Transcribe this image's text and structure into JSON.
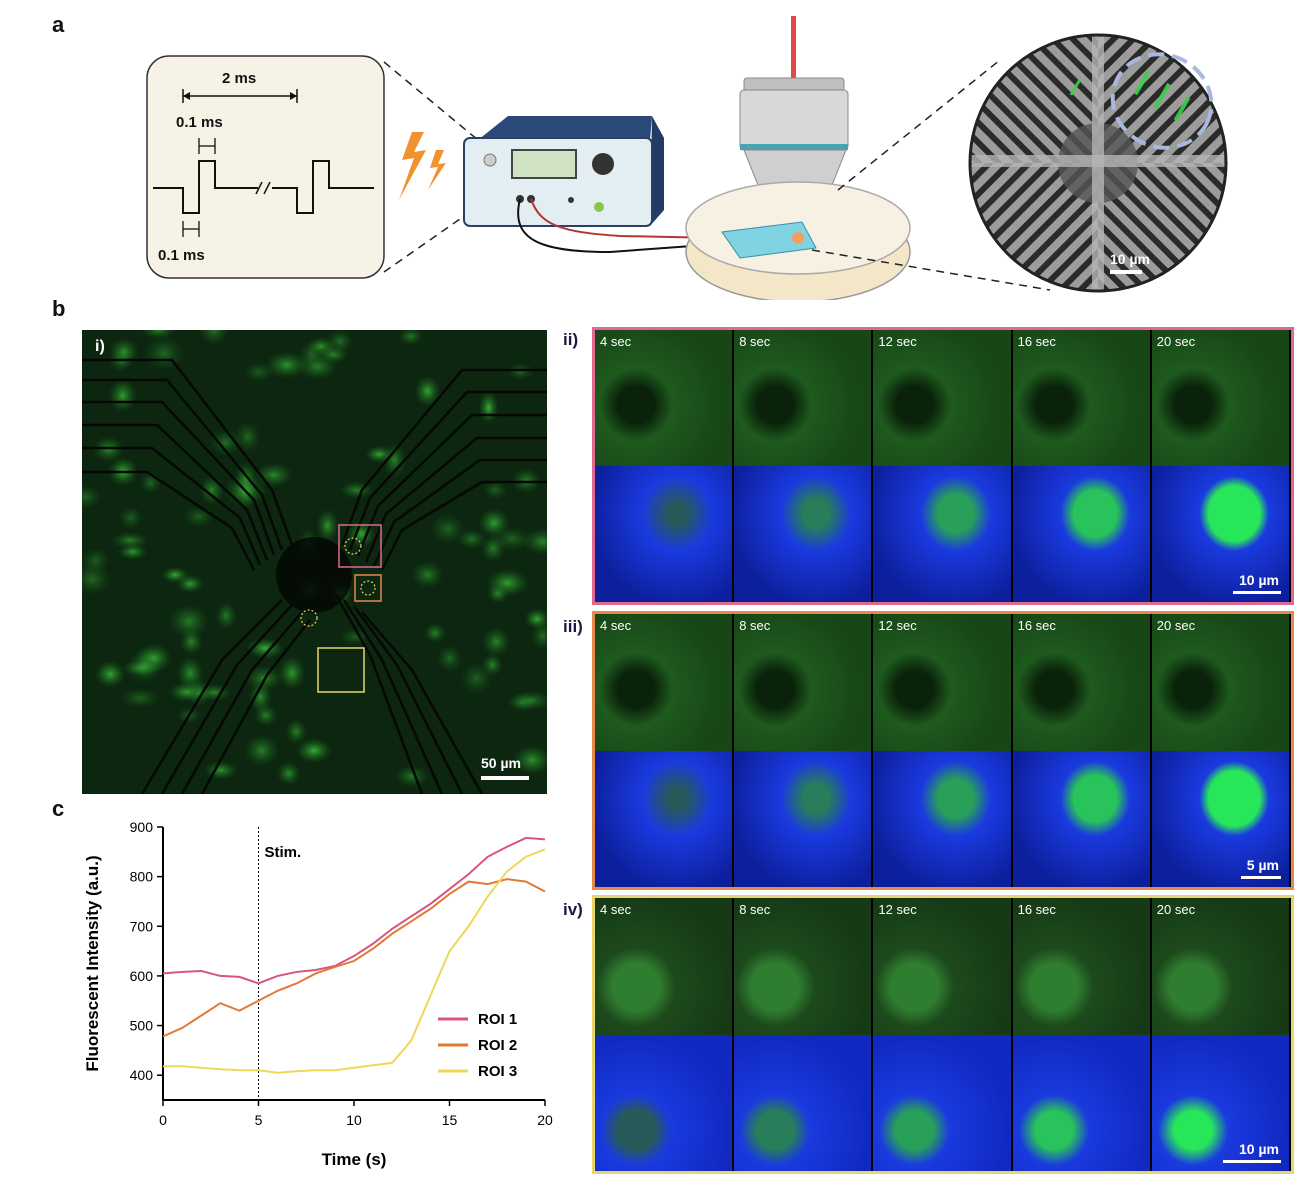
{
  "panel_labels": {
    "a": "a",
    "b": "b",
    "c": "c"
  },
  "panel_a": {
    "pulse_period": "2 ms",
    "pulse_width_top": "0.1 ms",
    "pulse_width_bottom": "0.1 ms",
    "inset_scale": "10 µm"
  },
  "panel_b": {
    "sub_labels": {
      "i": "i)",
      "ii": "ii)",
      "iii": "iii)",
      "iv": "iv)"
    },
    "overview_scale": "50 µm",
    "time_labels": [
      "4 sec",
      "8 sec",
      "12 sec",
      "16 sec",
      "20 sec"
    ],
    "scales": {
      "ii": "10 µm",
      "iii": "5 µm",
      "iv": "10 µm"
    },
    "frame_colors": {
      "ii": "#e06a8f",
      "iii": "#e58a4a",
      "iv": "#e8d66a"
    }
  },
  "chart_data": {
    "type": "line",
    "xlabel": "Time (s)",
    "ylabel": "Fluorescent Intensity (a.u.)",
    "xlim": [
      0,
      20
    ],
    "ylim": [
      350,
      900
    ],
    "xticks": [
      0,
      5,
      10,
      15,
      20
    ],
    "yticks": [
      400,
      500,
      600,
      700,
      800,
      900
    ],
    "annotation": {
      "x": 5,
      "text": "Stim."
    },
    "legend_position": "bottom-right",
    "series": [
      {
        "name": "ROI 1",
        "color": "#d9537f",
        "x": [
          0,
          1,
          2,
          3,
          4,
          5,
          6,
          7,
          8,
          9,
          10,
          11,
          12,
          13,
          14,
          15,
          16,
          17,
          18,
          19,
          20
        ],
        "y": [
          605,
          608,
          610,
          600,
          598,
          585,
          600,
          608,
          612,
          620,
          640,
          665,
          695,
          720,
          745,
          775,
          805,
          840,
          860,
          878,
          875
        ]
      },
      {
        "name": "ROI 2",
        "color": "#e07a35",
        "x": [
          0,
          1,
          2,
          3,
          4,
          5,
          6,
          7,
          8,
          9,
          10,
          11,
          12,
          13,
          14,
          15,
          16,
          17,
          18,
          19,
          20
        ],
        "y": [
          478,
          495,
          520,
          545,
          530,
          550,
          570,
          585,
          605,
          618,
          630,
          655,
          685,
          710,
          735,
          765,
          790,
          785,
          795,
          790,
          770
        ]
      },
      {
        "name": "ROI 3",
        "color": "#efd75a",
        "x": [
          0,
          1,
          2,
          3,
          4,
          5,
          6,
          7,
          8,
          9,
          10,
          11,
          12,
          13,
          14,
          15,
          16,
          17,
          18,
          19,
          20
        ],
        "y": [
          418,
          418,
          415,
          412,
          410,
          410,
          405,
          408,
          410,
          410,
          415,
          420,
          425,
          470,
          560,
          650,
          700,
          760,
          810,
          840,
          855
        ]
      }
    ]
  }
}
